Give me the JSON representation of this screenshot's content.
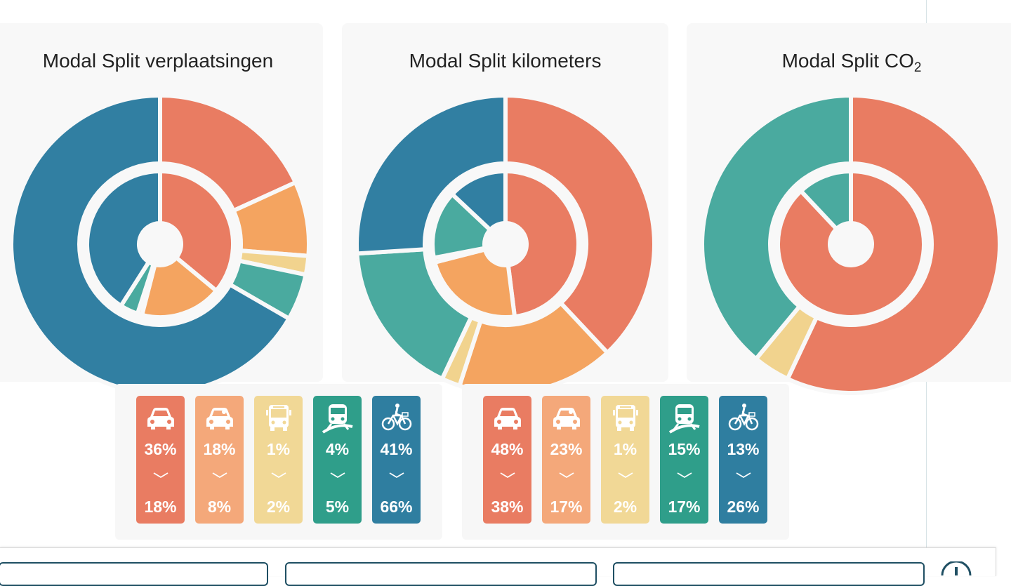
{
  "chart_data": [
    {
      "type": "pie",
      "title": "Modal Split verplaatsingen",
      "rings": {
        "outer": [
          {
            "mode": "car",
            "value": 18
          },
          {
            "mode": "car-passenger",
            "value": 8
          },
          {
            "mode": "bus",
            "value": 2
          },
          {
            "mode": "train",
            "value": 5
          },
          {
            "mode": "bike",
            "value": 66
          }
        ],
        "inner": [
          {
            "mode": "car",
            "value": 36
          },
          {
            "mode": "car-passenger",
            "value": 18
          },
          {
            "mode": "bus",
            "value": 1
          },
          {
            "mode": "train",
            "value": 4
          },
          {
            "mode": "bike",
            "value": 41
          }
        ]
      }
    },
    {
      "type": "pie",
      "title": "Modal Split kilometers",
      "rings": {
        "outer": [
          {
            "mode": "car",
            "value": 38
          },
          {
            "mode": "car-passenger",
            "value": 17
          },
          {
            "mode": "bus",
            "value": 2
          },
          {
            "mode": "train",
            "value": 17
          },
          {
            "mode": "bike",
            "value": 26
          }
        ],
        "inner": [
          {
            "mode": "car",
            "value": 48
          },
          {
            "mode": "car-passenger",
            "value": 23
          },
          {
            "mode": "bus",
            "value": 1
          },
          {
            "mode": "train",
            "value": 15
          },
          {
            "mode": "bike",
            "value": 13
          }
        ]
      }
    },
    {
      "type": "pie",
      "title": "Modal Split CO",
      "title_sub": "2",
      "rings": {
        "outer": [
          {
            "mode": "car",
            "value": 57
          },
          {
            "mode": "bus",
            "value": 4
          },
          {
            "mode": "train",
            "value": 39
          }
        ],
        "inner": [
          {
            "mode": "car",
            "value": 88
          },
          {
            "mode": "train",
            "value": 12
          }
        ]
      }
    }
  ],
  "colors": {
    "car": "#e97c62",
    "car-passenger": "#f4a460",
    "bus": "#f1d38e",
    "train": "#4aaa9f",
    "bike": "#317fa2"
  },
  "legends": [
    {
      "tiles": [
        {
          "mode": "car",
          "icon": "car-icon",
          "from": "36%",
          "to": "18%"
        },
        {
          "mode": "car-passenger",
          "icon": "car-passenger-icon",
          "from": "18%",
          "to": "8%"
        },
        {
          "mode": "bus",
          "icon": "bus-icon",
          "from": "1%",
          "to": "2%"
        },
        {
          "mode": "train",
          "icon": "train-icon",
          "from": "4%",
          "to": "5%"
        },
        {
          "mode": "bike",
          "icon": "bike-icon",
          "from": "41%",
          "to": "66%"
        }
      ]
    },
    {
      "tiles": [
        {
          "mode": "car",
          "icon": "car-icon",
          "from": "48%",
          "to": "38%"
        },
        {
          "mode": "car-passenger",
          "icon": "car-passenger-icon",
          "from": "23%",
          "to": "17%"
        },
        {
          "mode": "bus",
          "icon": "bus-icon",
          "from": "1%",
          "to": "2%"
        },
        {
          "mode": "train",
          "icon": "train-icon",
          "from": "15%",
          "to": "17%"
        },
        {
          "mode": "bike",
          "icon": "bike-icon",
          "from": "13%",
          "to": "26%"
        }
      ]
    }
  ]
}
